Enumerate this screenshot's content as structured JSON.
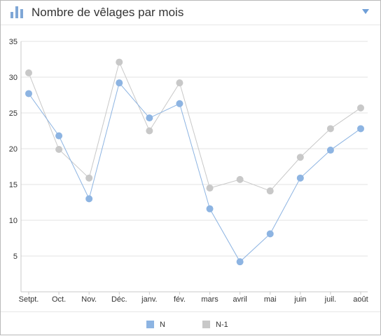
{
  "header": {
    "title": "Nombre de vêlages par mois",
    "icon": "bar-chart-icon",
    "collapse_icon": "chevron-down-icon",
    "accent_color": "#7fa7d6"
  },
  "chart_data": {
    "type": "line",
    "title": "Nombre de vêlages par mois",
    "xlabel": "",
    "ylabel": "",
    "categories": [
      "Setpt.",
      "Oct.",
      "Nov.",
      "Déc.",
      "janv.",
      "fév.",
      "mars",
      "avril",
      "mai",
      "juin",
      "juil.",
      "août"
    ],
    "ylim": [
      0,
      35
    ],
    "yticks": [
      5,
      10,
      15,
      20,
      25,
      30,
      35
    ],
    "grid": true,
    "legend_position": "bottom",
    "series": [
      {
        "name": "N",
        "color": "#8db4e2",
        "values": [
          27.7,
          21.8,
          13.0,
          29.2,
          24.3,
          26.3,
          11.6,
          4.2,
          8.1,
          15.9,
          19.8,
          22.8
        ]
      },
      {
        "name": "N-1",
        "color": "#c8c8c8",
        "values": [
          30.6,
          19.9,
          15.9,
          32.1,
          22.5,
          29.2,
          14.5,
          15.7,
          14.1,
          18.8,
          22.8,
          25.7
        ]
      }
    ]
  }
}
